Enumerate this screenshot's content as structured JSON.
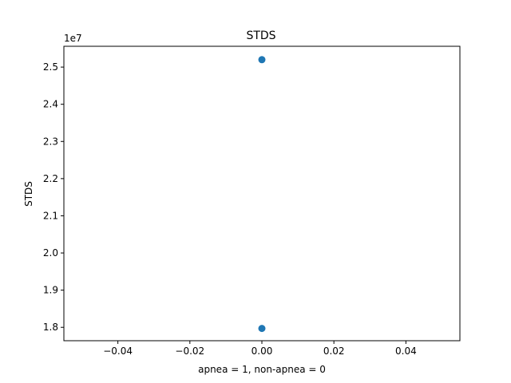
{
  "chart_data": {
    "type": "scatter",
    "title": "STDS",
    "xlabel": "apnea = 1, non-apnea = 0",
    "ylabel": "STDS",
    "y_offset_label": "1e7",
    "xlim": [
      -0.055,
      0.055
    ],
    "ylim": [
      17640000,
      25560000
    ],
    "x_ticks": [
      -0.04,
      -0.02,
      0.0,
      0.02,
      0.04
    ],
    "x_tick_labels": [
      "−0.04",
      "−0.02",
      "0.00",
      "0.02",
      "0.04"
    ],
    "y_ticks": [
      18000000,
      19000000,
      20000000,
      21000000,
      22000000,
      23000000,
      24000000,
      25000000
    ],
    "y_tick_labels": [
      "1.8",
      "1.9",
      "2.0",
      "2.1",
      "2.2",
      "2.3",
      "2.4",
      "2.5"
    ],
    "points": [
      {
        "x": 0.0,
        "y": 25200000
      },
      {
        "x": 0.0,
        "y": 17970000
      }
    ],
    "marker_color": "#1f77b4",
    "grid": false,
    "legend": "none"
  }
}
